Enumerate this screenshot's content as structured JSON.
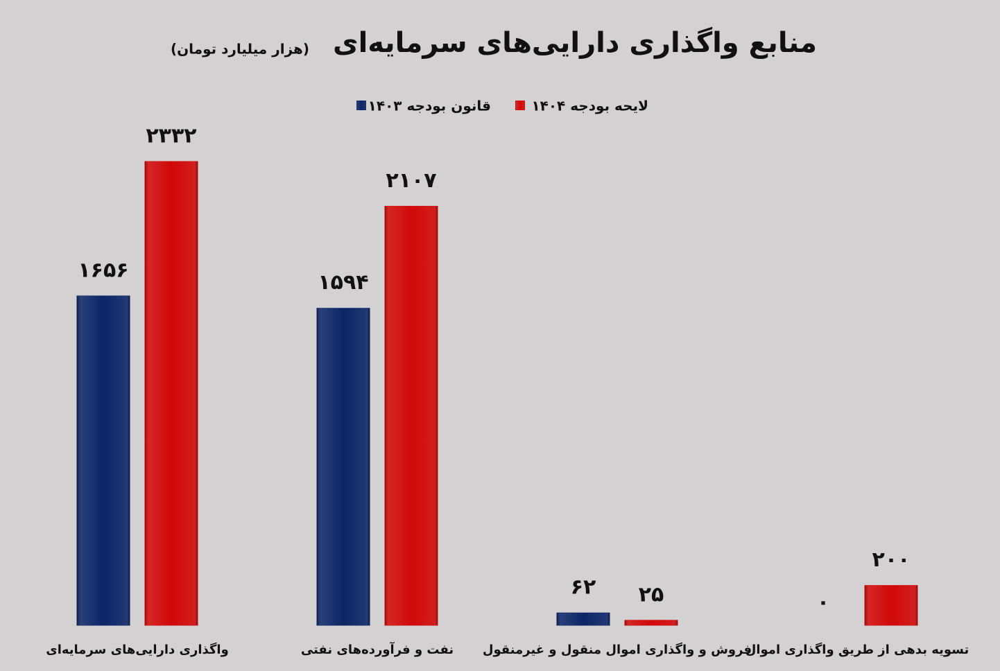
{
  "chart_data": {
    "type": "bar",
    "title": "منابع واگذاری دارایی‌های سرمایه‌ای",
    "subtitle": "(هزار میلیارد تومان)",
    "categories": [
      "واگذاری دارایی‌های سرمایه‌ای",
      "نفت و فرآورده‌های نفتی",
      "فروش و واگذاری اموال منقول و غیرمنقول",
      "تسویه بدهی از طریق واگذاری اموال"
    ],
    "series": [
      {
        "name": "قانون بودجه ۱۴۰۳",
        "color": "#0c2566",
        "values": [
          1656,
          1594,
          62,
          0
        ],
        "value_labels": [
          "۱۶۵۶",
          "۱۵۹۴",
          "۶۲",
          "۰"
        ]
      },
      {
        "name": "لایحه بودجه ۱۴۰۴",
        "color": "#d00808",
        "values": [
          2332,
          2107,
          25,
          200
        ],
        "value_labels": [
          "۲۳۳۲",
          "۲۱۰۷",
          "۲۵",
          "۲۰۰"
        ]
      }
    ],
    "legend": "top"
  }
}
